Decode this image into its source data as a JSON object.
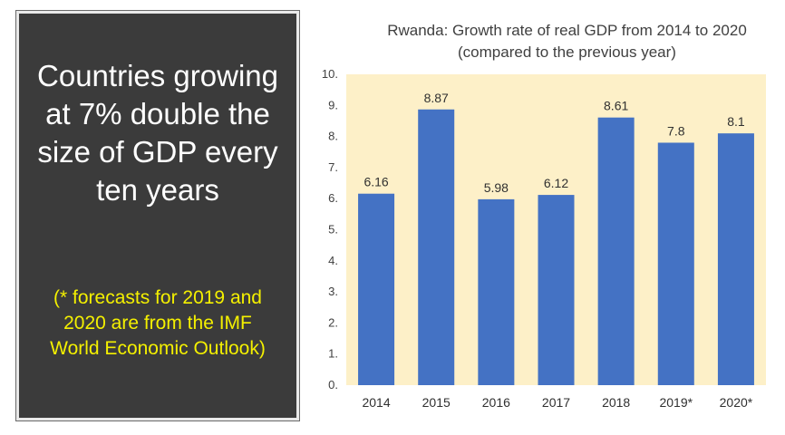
{
  "panel": {
    "headline": "Countries growing at 7% double the size of GDP every ten years",
    "note": "(* forecasts for 2019 and 2020 are from the IMF World Economic Outlook)"
  },
  "colors": {
    "panel_bg": "#3b3b3b",
    "note_text": "#f4f000",
    "plot_bg": "#fdf0c8",
    "bar": "#4472c4"
  },
  "chart_data": {
    "type": "bar",
    "title": "Rwanda: Growth rate of real GDP from 2014 to 2020 (compared to the previous year)",
    "categories": [
      "2014",
      "2015",
      "2016",
      "2017",
      "2018",
      "2019*",
      "2020*"
    ],
    "values": [
      6.16,
      8.87,
      5.98,
      6.12,
      8.61,
      7.8,
      8.1
    ],
    "value_labels": [
      "6.16",
      "8.87",
      "5.98",
      "6.12",
      "8.61",
      "7.8",
      "8.1"
    ],
    "yticks": [
      "0.",
      "1.",
      "2.",
      "3.",
      "4.",
      "5.",
      "6.",
      "7.",
      "8.",
      "9.",
      "10."
    ],
    "ylim": [
      0,
      10
    ],
    "grid": false,
    "legend": "none"
  }
}
